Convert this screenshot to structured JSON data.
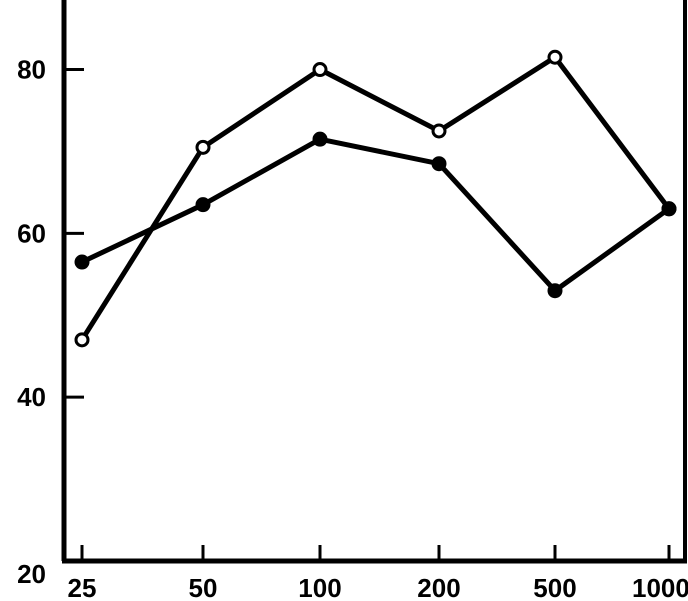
{
  "chart_data": {
    "type": "line",
    "x": [
      25,
      50,
      100,
      200,
      500,
      1000
    ],
    "x_tick_labels": [
      "25",
      "50",
      "100",
      "200",
      "500",
      "1000"
    ],
    "y_ticks": [
      20,
      40,
      60,
      80
    ],
    "y_tick_labels": [
      "20",
      "40",
      "60",
      "80"
    ],
    "ylim": [
      20,
      88
    ],
    "series": [
      {
        "marker": "open-circle",
        "values": [
          47,
          70.5,
          80,
          72.5,
          81.5,
          63
        ]
      },
      {
        "marker": "filled-circle",
        "values": [
          56.5,
          63.5,
          71.5,
          68.5,
          53,
          63
        ]
      }
    ],
    "title": "",
    "xlabel": "",
    "ylabel": "",
    "grid": false,
    "legend": "none",
    "colors": {
      "line": "#000000",
      "background": "#ffffff"
    }
  }
}
